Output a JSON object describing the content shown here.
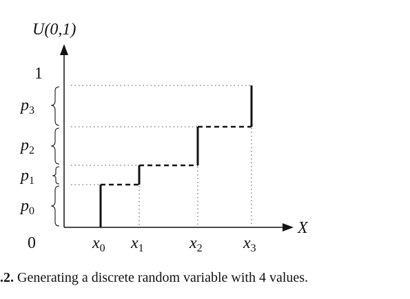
{
  "diagram": {
    "y_axis_label": "U(0,1)",
    "x_axis_label": "X",
    "y_top_label": "1",
    "origin_label": "0",
    "probabilities": [
      {
        "base": "p",
        "sub": "0"
      },
      {
        "base": "p",
        "sub": "1"
      },
      {
        "base": "p",
        "sub": "2"
      },
      {
        "base": "p",
        "sub": "3"
      }
    ],
    "x_values": [
      {
        "base": "x",
        "sub": "0"
      },
      {
        "base": "x",
        "sub": "1"
      },
      {
        "base": "x",
        "sub": "2"
      },
      {
        "base": "x",
        "sub": "3"
      }
    ]
  },
  "caption": {
    "figure_number": ".2.",
    "text": "Generating a discrete random variable with 4 values."
  }
}
